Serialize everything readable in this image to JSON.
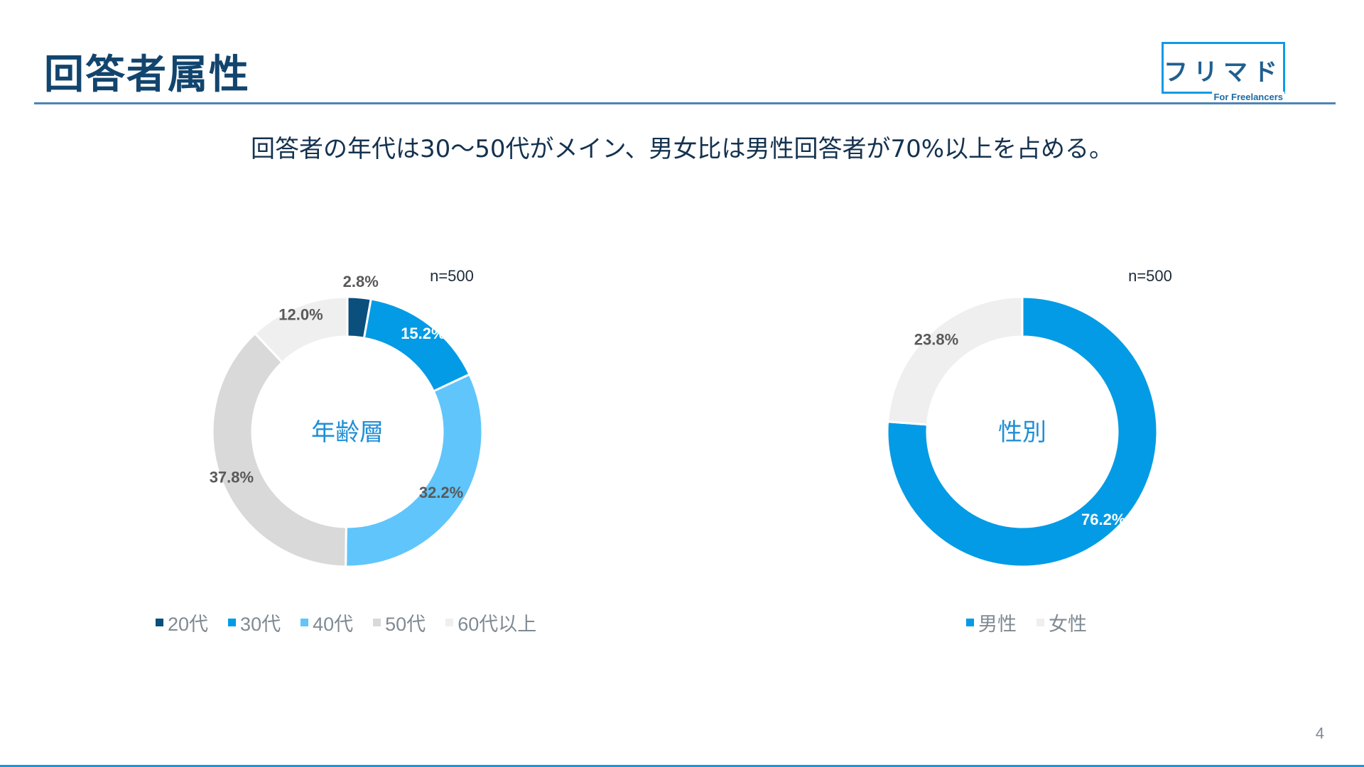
{
  "slide": {
    "title": "回答者属性",
    "subtitle": "回答者の年代は30〜50代がメイン、男女比は男性回答者が70%以上を占める。",
    "page_number": "4"
  },
  "logo": {
    "main": "フリマド",
    "sub": "For Freelancers"
  },
  "chart_data": [
    {
      "type": "pie",
      "title": "年齢層",
      "note": "n=500",
      "categories": [
        "20代",
        "30代",
        "40代",
        "50代",
        "60代以上"
      ],
      "values": [
        2.8,
        15.2,
        32.2,
        37.8,
        12.0
      ],
      "labels": [
        "2.8%",
        "15.2%",
        "32.2%",
        "37.8%",
        "12.0%"
      ],
      "colors": [
        "#0b4f7c",
        "#039be5",
        "#60c5fb",
        "#d9d9d9",
        "#efefef"
      ],
      "label_colors": [
        "#595959",
        "#ffffff",
        "#595959",
        "#595959",
        "#595959"
      ],
      "legend": "bottom"
    },
    {
      "type": "pie",
      "title": "性別",
      "note": "n=500",
      "categories": [
        "男性",
        "女性"
      ],
      "values": [
        76.2,
        23.8
      ],
      "labels": [
        "76.2%",
        "23.8%"
      ],
      "colors": [
        "#039be5",
        "#efefef"
      ],
      "label_colors": [
        "#ffffff",
        "#595959"
      ],
      "legend": "bottom"
    }
  ]
}
